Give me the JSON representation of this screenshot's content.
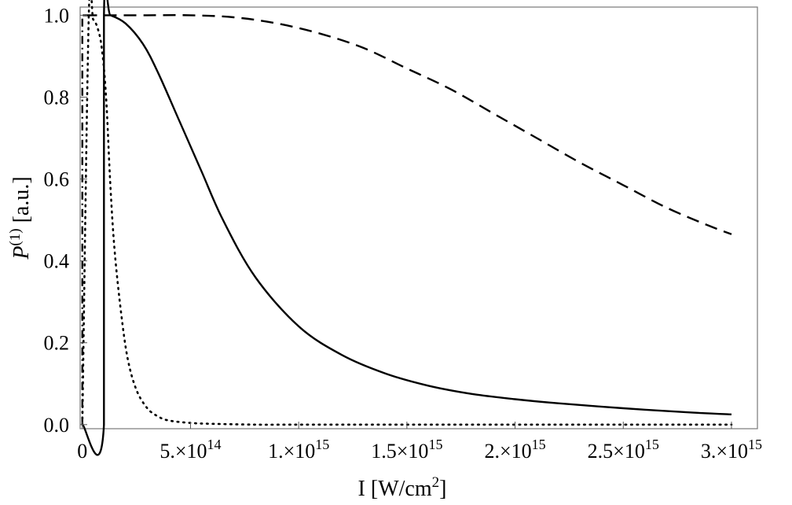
{
  "chart_data": {
    "type": "line",
    "xlabel": {
      "main": "I [W/cm",
      "sup": "2",
      "end": "]"
    },
    "ylabel": {
      "main": "P",
      "sup": "(1)",
      "end": " [a.u.]"
    },
    "xlim": [
      -10000000000000.0,
      3120000000000000.0
    ],
    "ylim": [
      -0.01,
      1.02
    ],
    "x_ticks": [
      {
        "value": 0,
        "mant": "0",
        "exp": ""
      },
      {
        "value": 500000000000000.0,
        "mant": "5.×10",
        "exp": "14"
      },
      {
        "value": 1000000000000000.0,
        "mant": "1.×10",
        "exp": "15"
      },
      {
        "value": 1500000000000000.0,
        "mant": "1.5×10",
        "exp": "15"
      },
      {
        "value": 2000000000000000.0,
        "mant": "2.×10",
        "exp": "15"
      },
      {
        "value": 2500000000000000.0,
        "mant": "2.5×10",
        "exp": "15"
      },
      {
        "value": 3000000000000000.0,
        "mant": "3.×10",
        "exp": "15"
      }
    ],
    "y_ticks": [
      {
        "value": 0.0,
        "label": "0.0"
      },
      {
        "value": 0.2,
        "label": "0.2"
      },
      {
        "value": 0.4,
        "label": "0.4"
      },
      {
        "value": 0.6,
        "label": "0.6"
      },
      {
        "value": 0.8,
        "label": "0.8"
      },
      {
        "value": 1.0,
        "label": "1.0"
      }
    ],
    "grid": false,
    "series": [
      {
        "style": "solid",
        "x": [
          0,
          100000000000000.0,
          100000000000000.0,
          130000000000000.0,
          200000000000000.0,
          280000000000000.0,
          350000000000000.0,
          450000000000000.0,
          550000000000000.0,
          650000000000000.0,
          800000000000000.0,
          1000000000000000.0,
          1200000000000000.0,
          1400000000000000.0,
          1600000000000000.0,
          1800000000000000.0,
          2000000000000000.0,
          2200000000000000.0,
          2500000000000000.0,
          2800000000000000.0,
          3000000000000000.0
        ],
        "y": [
          0,
          0,
          1.0,
          1.0,
          0.98,
          0.93,
          0.86,
          0.74,
          0.62,
          0.5,
          0.36,
          0.24,
          0.17,
          0.125,
          0.095,
          0.075,
          0.062,
          0.052,
          0.04,
          0.03,
          0.025
        ]
      },
      {
        "style": "dashed",
        "x": [
          10000000000000.0,
          100000000000000.0,
          300000000000000.0,
          500000000000000.0,
          700000000000000.0,
          900000000000000.0,
          1100000000000000.0,
          1300000000000000.0,
          1500000000000000.0,
          1700000000000000.0,
          1900000000000000.0,
          2100000000000000.0,
          2300000000000000.0,
          2500000000000000.0,
          2700000000000000.0,
          2900000000000000.0,
          3000000000000000.0
        ],
        "y": [
          1.0,
          1.0,
          1.0,
          1.0,
          0.995,
          0.98,
          0.955,
          0.92,
          0.87,
          0.82,
          0.76,
          0.7,
          0.64,
          0.585,
          0.53,
          0.485,
          0.465
        ]
      },
      {
        "style": "dotted",
        "x": [
          0,
          30000000000000.0,
          50000000000000.0,
          70000000000000.0,
          90000000000000.0,
          110000000000000.0,
          130000000000000.0,
          150000000000000.0,
          180000000000000.0,
          210000000000000.0,
          250000000000000.0,
          300000000000000.0,
          350000000000000.0,
          400000000000000.0,
          500000000000000.0,
          600000000000000.0,
          800000000000000.0,
          1000000000000000.0,
          1500000000000000.0,
          2000000000000000.0,
          2500000000000000.0,
          3000000000000000.0
        ],
        "y": [
          0.0,
          1.0,
          0.99,
          0.97,
          0.92,
          0.8,
          0.58,
          0.42,
          0.27,
          0.16,
          0.085,
          0.04,
          0.02,
          0.01,
          0.004,
          0.002,
          0.0,
          0.0,
          0.0,
          0.0,
          0.0,
          0.0
        ]
      },
      {
        "style": "dashdot",
        "x": [
          0,
          0,
          10000000000000.0
        ],
        "y": [
          0.0,
          1.0,
          1.0
        ]
      }
    ]
  }
}
